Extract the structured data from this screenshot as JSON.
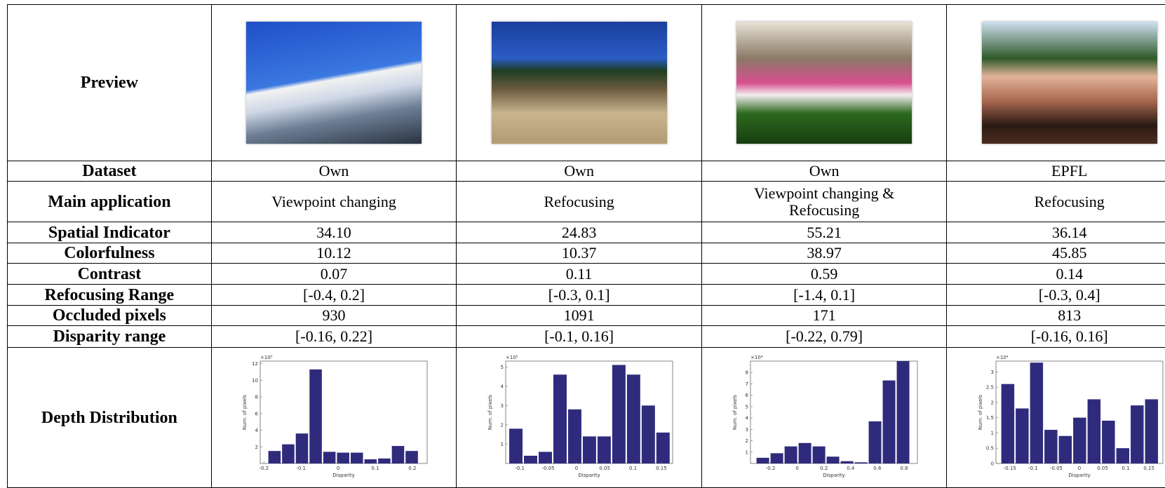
{
  "table": {
    "row_labels": [
      "Preview",
      "Dataset",
      "Main application",
      "Spatial Indicator",
      "Colorfulness",
      "Contrast",
      "Refocusing Range",
      "Occluded pixels",
      "Disparity range",
      "Depth Distribution"
    ],
    "columns": [
      {
        "cells": [
          "Own",
          "Viewpoint changing",
          "34.10",
          "10.12",
          "0.07",
          "[-0.4, 0.2]",
          "930",
          "[-0.16, 0.22]"
        ],
        "histogram": {
          "type": "histogram",
          "color": "#2f2b7c",
          "y_multiplier": "×10⁵",
          "xlabel": "Disparity",
          "ylabel": "Num. of pixels",
          "bins": [
            -0.19,
            -0.153,
            -0.116,
            -0.079,
            -0.042,
            -0.005,
            0.032,
            0.069,
            0.106,
            0.143,
            0.18,
            0.217
          ],
          "counts": [
            1.5,
            2.3,
            3.6,
            11.3,
            1.4,
            1.3,
            1.3,
            0.5,
            0.6,
            2.1,
            1.5
          ],
          "xlim": [
            -0.21,
            0.24
          ],
          "ylim": [
            0,
            12.3
          ],
          "xticks": [
            -0.2,
            -0.1,
            0,
            0.1,
            0.2
          ],
          "yticks": [
            2,
            4,
            6,
            8,
            10,
            12
          ]
        }
      },
      {
        "cells": [
          "Own",
          "Refocusing",
          "24.83",
          "10.37",
          "0.11",
          "[-0.3, 0.1]",
          "1091",
          "[-0.1, 0.16]"
        ],
        "histogram": {
          "type": "histogram",
          "color": "#2f2b7c",
          "y_multiplier": "×10⁵",
          "xlabel": "Disparity",
          "ylabel": "Num. of pixels",
          "bins": [
            -0.12,
            -0.094,
            -0.068,
            -0.042,
            -0.016,
            0.01,
            0.036,
            0.062,
            0.088,
            0.114,
            0.14,
            0.166
          ],
          "counts": [
            1.8,
            0.4,
            0.6,
            4.6,
            2.8,
            1.4,
            1.4,
            5.1,
            4.6,
            3.0,
            1.6
          ],
          "xlim": [
            -0.125,
            0.17
          ],
          "ylim": [
            0,
            5.3
          ],
          "xticks": [
            -0.1,
            -0.05,
            0,
            0.05,
            0.1,
            0.15
          ],
          "yticks": [
            1,
            2,
            3,
            4,
            5
          ]
        }
      },
      {
        "cells": [
          "Own",
          "Viewpoint changing & Refocusing",
          "55.21",
          "38.97",
          "0.59",
          "[-1.4, 0.1]",
          "171",
          "[-0.22, 0.79]"
        ],
        "histogram": {
          "type": "histogram",
          "color": "#2f2b7c",
          "y_multiplier": "×10⁴",
          "xlabel": "Disparity",
          "ylabel": "Num. of pixels",
          "bins": [
            -0.31,
            -0.205,
            -0.1,
            0.005,
            0.11,
            0.215,
            0.32,
            0.425,
            0.53,
            0.635,
            0.74,
            0.845
          ],
          "counts": [
            0.5,
            0.9,
            1.5,
            1.8,
            1.5,
            0.6,
            0.2,
            0.1,
            3.7,
            7.3,
            9.0
          ],
          "xlim": [
            -0.35,
            0.9
          ],
          "ylim": [
            0,
            9
          ],
          "xticks": [
            -0.2,
            0,
            0.2,
            0.4,
            0.6,
            0.8
          ],
          "yticks": [
            1,
            2,
            3,
            4,
            5,
            6,
            7,
            8
          ]
        }
      },
      {
        "cells": [
          "EPFL",
          "Refocusing",
          "36.14",
          "45.85",
          "0.14",
          "[-0.3, 0.4]",
          "813",
          "[-0.16, 0.16]"
        ],
        "histogram": {
          "type": "histogram",
          "color": "#2f2b7c",
          "y_multiplier": "×10⁴",
          "xlabel": "Disparity",
          "ylabel": "Num. of pixels",
          "bins": [
            -0.17,
            -0.139,
            -0.108,
            -0.077,
            -0.046,
            -0.015,
            0.016,
            0.047,
            0.078,
            0.109,
            0.14,
            0.171
          ],
          "counts": [
            2.6,
            1.8,
            3.3,
            1.1,
            0.9,
            1.5,
            2.1,
            1.4,
            0.5,
            1.9,
            2.1
          ],
          "xlim": [
            -0.18,
            0.18
          ],
          "ylim": [
            0,
            3.35
          ],
          "xticks": [
            -0.15,
            -0.1,
            -0.05,
            0,
            0.05,
            0.1,
            0.15
          ],
          "yticks": [
            0,
            0.5,
            1,
            1.5,
            2,
            2.5,
            3
          ]
        }
      }
    ]
  }
}
